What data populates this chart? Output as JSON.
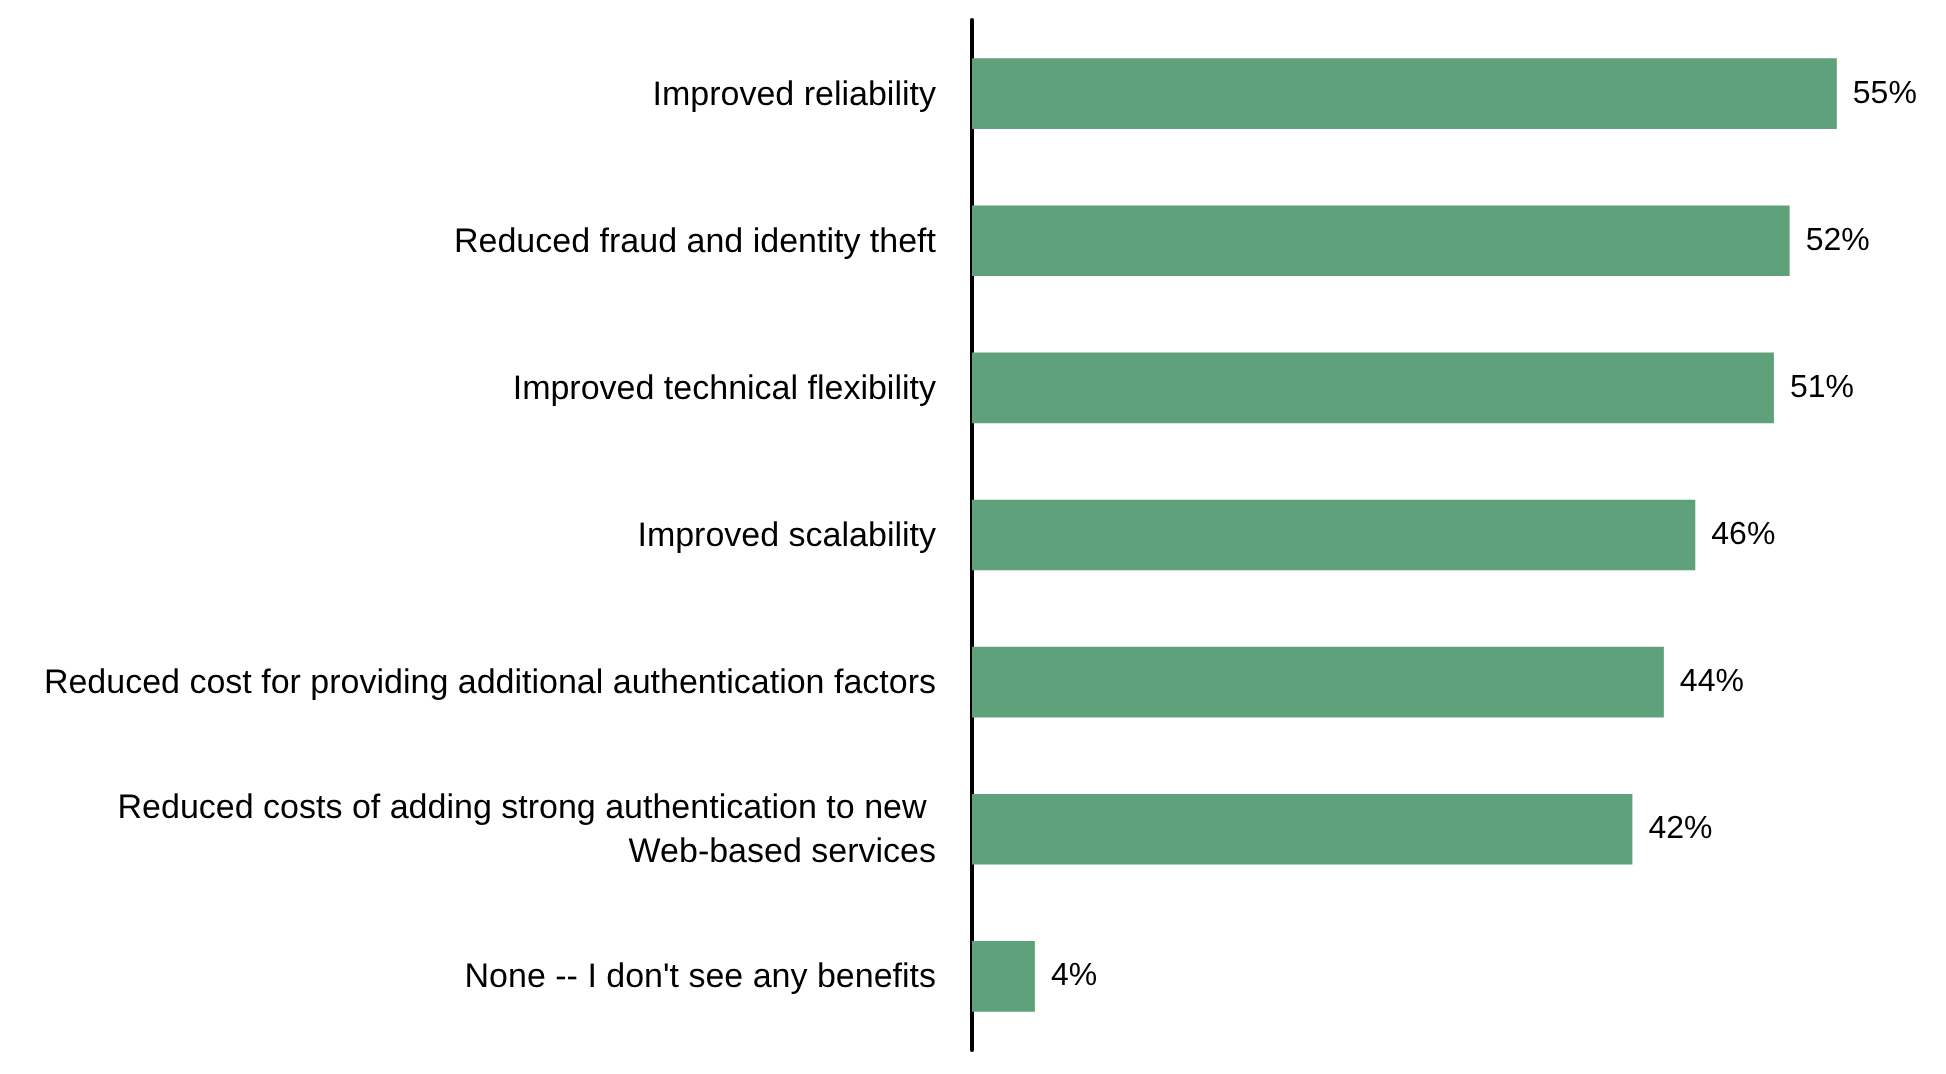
{
  "chart_data": {
    "type": "bar",
    "orientation": "horizontal",
    "categories": [
      "Improved reliability",
      "Reduced fraud and identity theft",
      "Improved technical flexibility",
      "Improved scalability",
      "Reduced cost for providing additional authentication factors",
      "Reduced costs of adding strong authentication to new Web-based services",
      "None -- I don't see any benefits"
    ],
    "values": [
      55,
      52,
      51,
      46,
      44,
      42,
      4
    ],
    "value_labels": [
      "55%",
      "52%",
      "51%",
      "46%",
      "44%",
      "42%",
      "4%"
    ],
    "color": "#5fa17b"
  }
}
